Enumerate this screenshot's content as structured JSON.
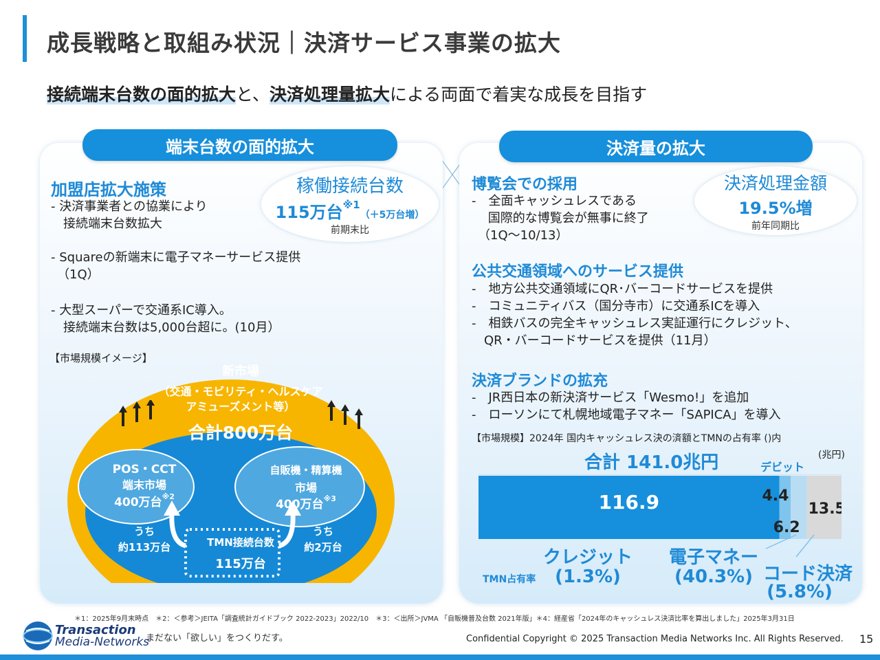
{
  "header": {
    "title": "成長戦略と取組み状況｜決済サービス事業の拡大",
    "subtitle_hl1": "接続端末台数の面的拡大",
    "subtitle_mid": "と、",
    "subtitle_hl2": "決済処理量拡大",
    "subtitle_end": "による両面で着実な成長を目指す"
  },
  "left": {
    "pill": "端末台数の面的拡大",
    "section_title": "加盟店拡大施策",
    "items": [
      "- 決済事業者との協業により",
      "　接続端末台数拡大",
      "- Squareの新端末に電子マネーサービス提供",
      "　（1Q）",
      "- 大型スーパーで交通系IC導入。",
      "　接続端末台数は5,000台超に。(10月）"
    ],
    "bubble": {
      "label": "稼働接続台数",
      "value": "115万台",
      "note_mark": "※1",
      "delta": "（＋5万台増）",
      "compare": "前期末比"
    },
    "market_label": "【市場規模イメージ】",
    "diagram": {
      "new_market_title": "新市場",
      "new_market_line1": "（交通・モビリティ・ヘルスケア",
      "new_market_line2": "アミューズメント等）",
      "total": "合計800万台",
      "pos_line1": "POS・CCT",
      "pos_line2": "端末市場",
      "pos_line3": "400万台",
      "pos_mark": "※2",
      "vend_line1": "自販機・精算機",
      "vend_line2": "市場",
      "vend_line3": "400万台",
      "vend_mark": "※3",
      "left_uchi1": "うち",
      "left_uchi2": "約113万台",
      "right_uchi1": "うち",
      "right_uchi2": "約2万台",
      "tmn_label": "TMN接続台数",
      "tmn_value": "115万台"
    }
  },
  "right": {
    "pill": "決済量の拡大",
    "bubble": {
      "label": "決済処理金額",
      "value": "19.5%増",
      "compare": "前年同期比"
    },
    "section1_title": "博覧会での採用",
    "section1_items": [
      "-　全面キャッシュレスである",
      "　 国際的な博覧会が無事に終了",
      "　（1Q〜10/13）"
    ],
    "section2_title": "公共交通領域へのサービス提供",
    "section2_items": [
      "-　地方公共交通領域にQR･バーコードサービスを提供",
      "-　コミュニティバス（国分寺市）に交通系ICを導入",
      "-　相鉄バスの完全キャッシュレス実証運行にクレジット、",
      "　QR・バーコードサービスを提供（11月）"
    ],
    "section3_title": "決済ブランドの拡充",
    "section3_items": [
      "-　JR西日本の新決済サービス「Wesmo!」を追加",
      "-　ローソンにて札幌地域電子マネー「SAPICA」を導入"
    ],
    "market_caption": "【市場規模】2024年 国内キャッシュレス決の済額とTMNの占有率 ()内",
    "unit": "(兆円)",
    "total_label": "合計 141.0兆円",
    "debit_label": "デビット",
    "share_label": "TMN占有率",
    "legend": [
      {
        "name": "クレジット",
        "share": "(1.3%)"
      },
      {
        "name": "電子マネー",
        "share": "(40.3%)"
      },
      {
        "name": "コード決済",
        "share": "(5.8%)"
      }
    ]
  },
  "chart_data": {
    "type": "bar",
    "stacked": true,
    "orientation": "horizontal",
    "categories": [
      "2024年"
    ],
    "series": [
      {
        "name": "クレジット",
        "values": [
          116.9
        ],
        "label": "116.9",
        "color": "#168fdc"
      },
      {
        "name": "デビット",
        "values": [
          4.4
        ],
        "label": "4.4",
        "color": "#7fc4ec"
      },
      {
        "name": "電子マネー",
        "values": [
          6.2
        ],
        "label": "6.2",
        "color": "#b8ddf3"
      },
      {
        "name": "コード決済",
        "values": [
          13.5
        ],
        "label": "13.5",
        "color": "#d9d9d9"
      }
    ],
    "total": 141.0
  },
  "footer": {
    "footnote": "＊1：2025年9月末時点　＊2：＜参考＞JEITA「調査統計ガイドブック 2022-2023」2022/10　＊3：＜出所＞JVMA 「自販機普及台数 2021年版」＊4：経産省「2024年のキャッシュレス決済比率を算出しました」2025年3月31日",
    "logo_line1": "Transaction",
    "logo_line2": "Media-Networks",
    "tagline": "まだない「欲しい」をつくりだす。",
    "copyright": "Confidential  Copyright © 2025 Transaction Media Networks Inc. All Rights Reserved.",
    "page": "15"
  }
}
